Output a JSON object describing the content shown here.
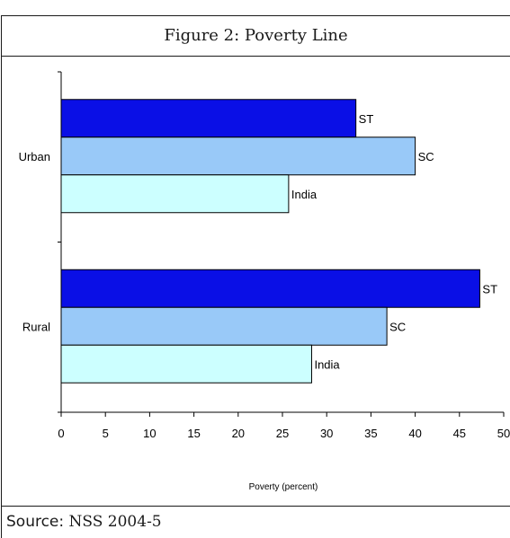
{
  "page_title": "Figure 2: Poverty Line",
  "source": {
    "label": "Source:",
    "value": "NSS 2004-5"
  },
  "chart_data": {
    "type": "bar",
    "orientation": "horizontal",
    "title": "",
    "xlabel": "Poverty (percent)",
    "ylabel": "",
    "xlim": [
      0,
      50
    ],
    "x_ticks": [
      0,
      5,
      10,
      15,
      20,
      25,
      30,
      35,
      40,
      45,
      50
    ],
    "grid": false,
    "legend": "none",
    "categories": [
      "Urban",
      "Rural"
    ],
    "series": [
      {
        "name": "ST",
        "values": [
          33.3,
          47.3
        ],
        "color": "#0a0fe6"
      },
      {
        "name": "SC",
        "values": [
          40.0,
          36.8
        ],
        "color": "#99c9f8"
      },
      {
        "name": "India",
        "values": [
          25.7,
          28.3
        ],
        "color": "#ccffff"
      }
    ]
  }
}
